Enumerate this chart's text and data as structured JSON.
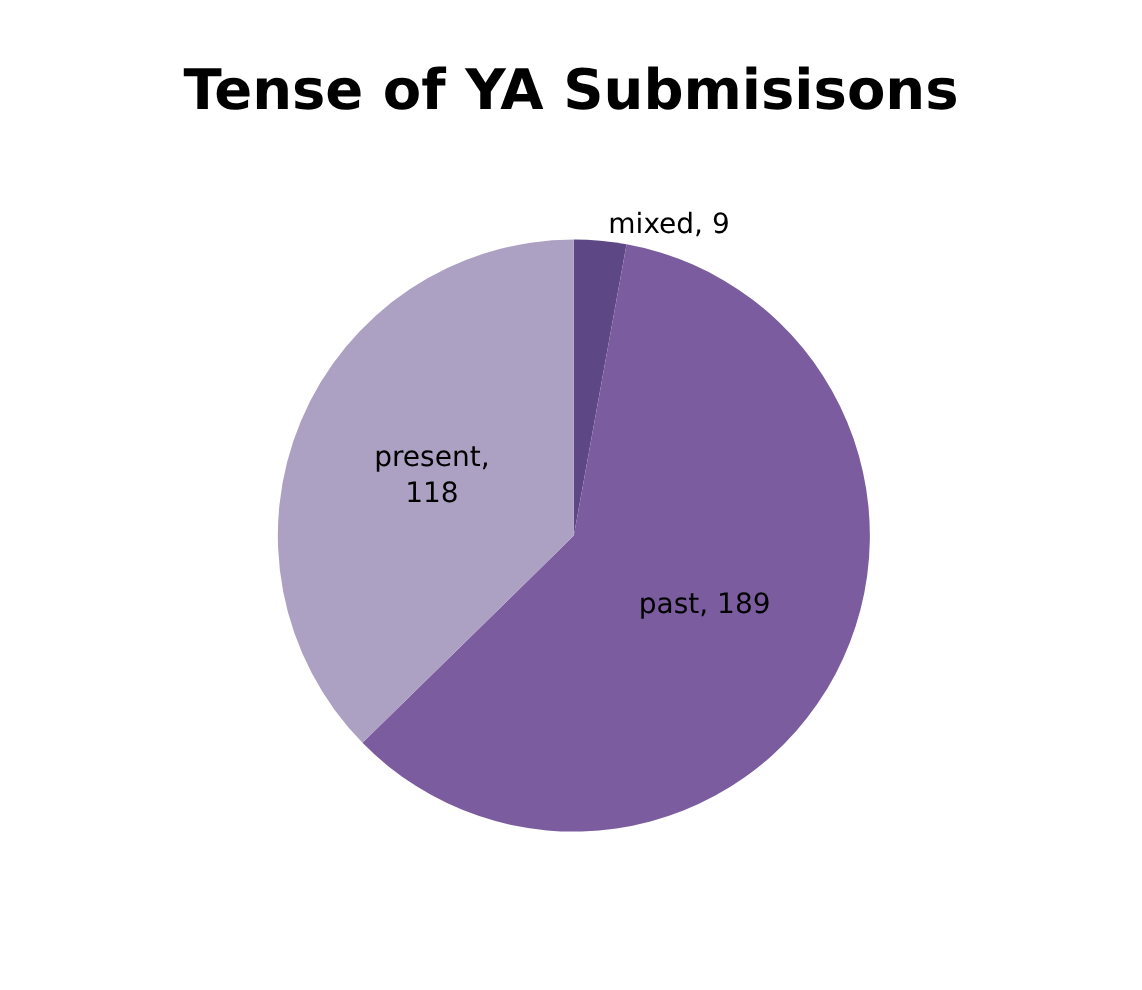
{
  "chart_data": {
    "type": "pie",
    "title": "Tense of YA Submisisons",
    "categories": [
      "mixed, 9",
      "past, 189",
      "present, 118"
    ],
    "values": [
      9,
      189,
      118
    ],
    "colors": [
      "#5e4785",
      "#7b5c9e",
      "#ada1c3"
    ],
    "legend": false
  }
}
